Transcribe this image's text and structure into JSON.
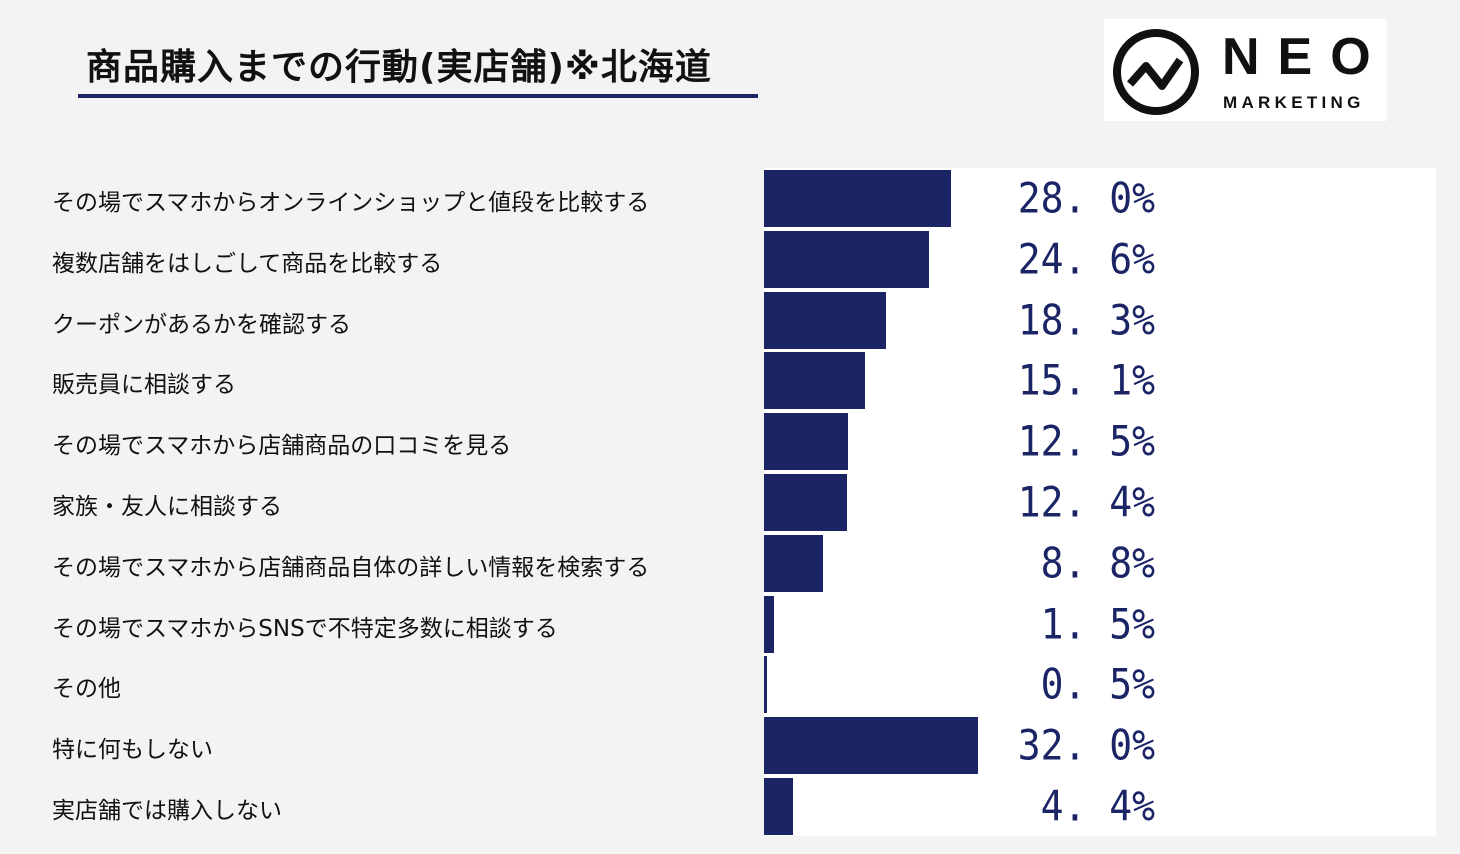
{
  "chart_data": {
    "type": "bar",
    "orientation": "horizontal",
    "title": "商品購入までの行動(実店舗)※北海道",
    "categories": [
      "その場でスマホからオンラインショップと値段を比較する",
      "複数店舗をはしごして商品を比較する",
      "クーポンがあるかを確認する",
      "販売員に相談する",
      "その場でスマホから店舗商品の口コミを見る",
      "家族・友人に相談する",
      "その場でスマホから店舗商品自体の詳しい情報を検索する",
      "その場でスマホからSNSで不特定多数に相談する",
      "その他",
      "特に何もしない",
      "実店舗では購入しない"
    ],
    "values": [
      28.0,
      24.6,
      18.3,
      15.1,
      12.5,
      12.4,
      8.8,
      1.5,
      0.5,
      32.0,
      4.4
    ],
    "value_labels": [
      "28. 0%",
      "24. 6%",
      "18. 3%",
      "15. 1%",
      "12. 5%",
      "12. 4%",
      "8. 8%",
      "1. 5%",
      "0. 5%",
      "32. 0%",
      "4. 4%"
    ],
    "xlim": [
      0,
      100
    ],
    "bar_color": "#1b2566"
  },
  "logo": {
    "text": "NEO",
    "subtext": "MARKETING"
  }
}
